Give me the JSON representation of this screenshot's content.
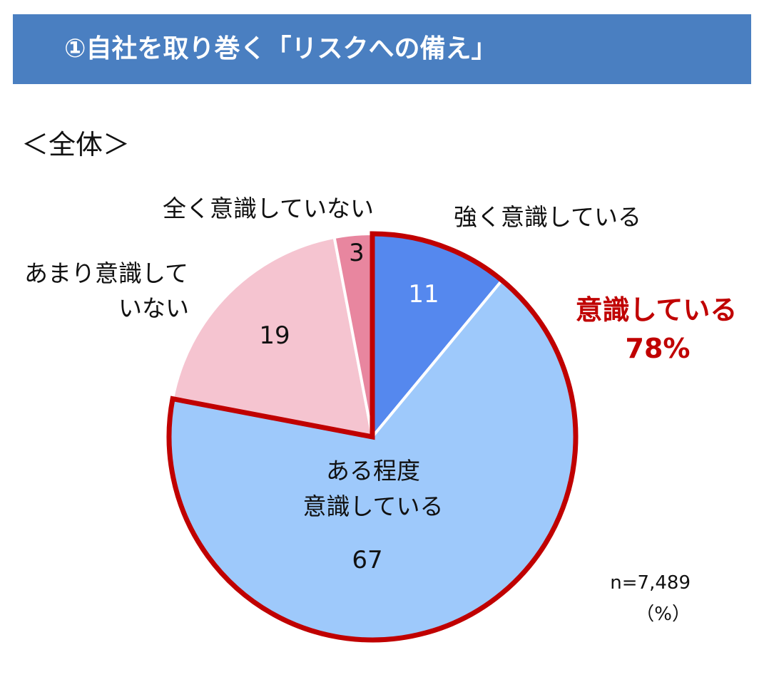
{
  "header": {
    "title": "①自社を取り巻く「リスクへの備え」"
  },
  "subtitle": "＜全体＞",
  "chart_data": {
    "type": "pie",
    "unit": "%",
    "start_angle_deg": 0,
    "direction": "clockwise",
    "slices": [
      {
        "label": "強く意識している",
        "value": 11,
        "color": "#5588ee",
        "text_color": "#ffffff"
      },
      {
        "label": "ある程度意識している",
        "label_lines": [
          "ある程度",
          "意識している"
        ],
        "value": 67,
        "color": "#9ec9fb",
        "text_color": "#111111"
      },
      {
        "label": "あまり意識していない",
        "label_lines": [
          "あまり意識して",
          "いない"
        ],
        "value": 19,
        "color": "#f5c4d0",
        "text_color": "#111111"
      },
      {
        "label": "全く意識していない",
        "value": 3,
        "color": "#e8869f",
        "text_color": "#111111"
      }
    ],
    "highlight": {
      "slices": [
        "強く意識している",
        "ある程度意識している"
      ],
      "label_lines": [
        "意識している",
        "78%"
      ],
      "color": "#c00000"
    },
    "notes": [
      "n=7,489",
      "（%）"
    ]
  }
}
